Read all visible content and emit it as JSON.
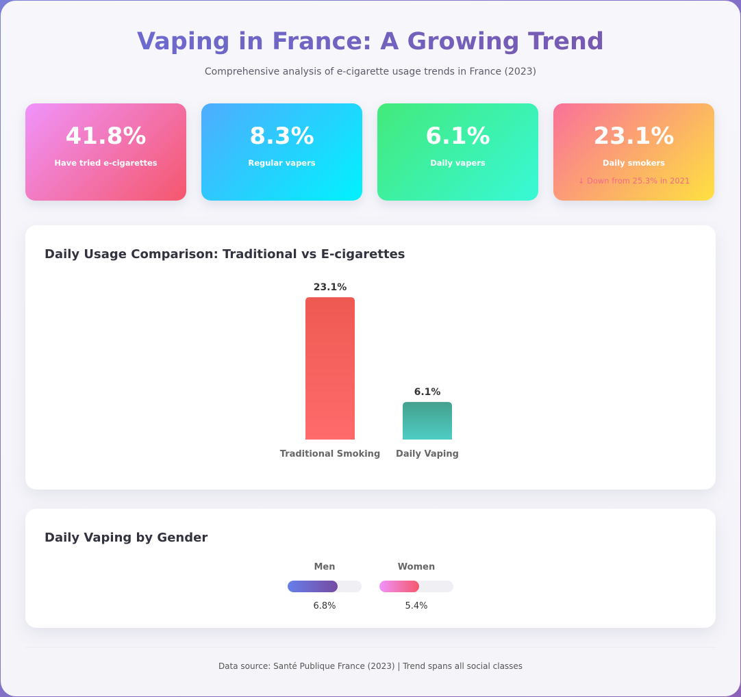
{
  "header": {
    "title": "Vaping in France: A Growing Trend",
    "subtitle": "Comprehensive analysis of e-cigarette usage trends in France (2023)"
  },
  "stats": [
    {
      "value": "41.8%",
      "label": "Have tried e-cigarettes",
      "note": ""
    },
    {
      "value": "8.3%",
      "label": "Regular vapers",
      "note": ""
    },
    {
      "value": "6.1%",
      "label": "Daily vapers",
      "note": ""
    },
    {
      "value": "23.1%",
      "label": "Daily smokers",
      "note": "↓ Down from 25.3% in 2021"
    }
  ],
  "colors": {
    "smoking_bar": "#ff6b6b",
    "vaping_bar": "#4ecdc4",
    "men_fill": "#764ba2",
    "women_fill": "#f5576c"
  },
  "chart_data": [
    {
      "type": "bar",
      "title": "Daily Usage Comparison: Traditional vs E-cigarettes",
      "categories": [
        "Traditional Smoking",
        "Daily Vaping"
      ],
      "values": [
        23.1,
        6.1
      ],
      "value_labels": [
        "23.1%",
        "6.1%"
      ],
      "unit": "%"
    },
    {
      "type": "bar",
      "title": "Daily Vaping by Gender",
      "categories": [
        "Men",
        "Women"
      ],
      "values": [
        6.8,
        5.4
      ],
      "value_labels": [
        "6.8%",
        "5.4%"
      ],
      "unit": "%",
      "bar_max": 10
    }
  ],
  "footer": {
    "text": "Data source: Santé Publique France (2023) | Trend spans all social classes"
  }
}
